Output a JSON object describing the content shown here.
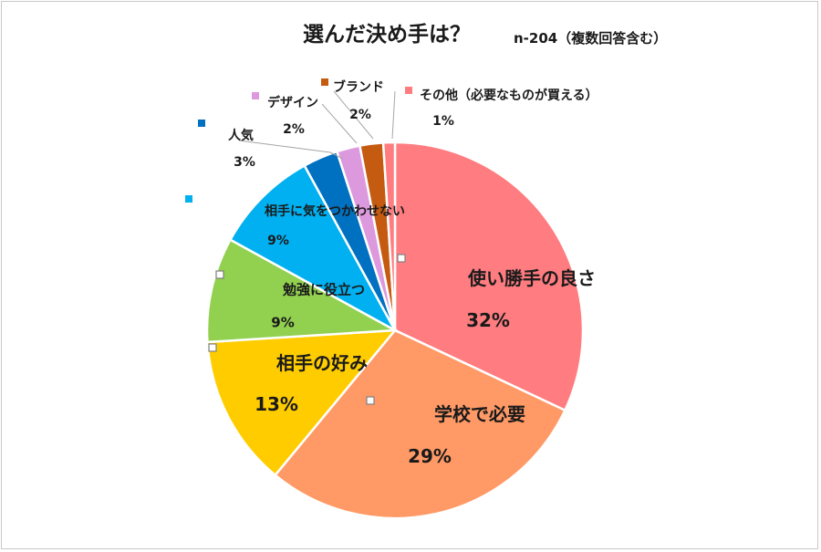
{
  "chart_data": {
    "type": "pie",
    "title": "選んだ決め手は？",
    "note": "n-204（複数回答含む）",
    "slices": [
      {
        "label": "使い勝手の良さ",
        "value": 32,
        "display": "32%",
        "color": "#ff7c80"
      },
      {
        "label": "学校で必要",
        "value": 29,
        "display": "29%",
        "color": "#ff9966"
      },
      {
        "label": "相手の好み",
        "value": 13,
        "display": "13%",
        "color": "#ffcc00"
      },
      {
        "label": "勉強に役立つ",
        "value": 9,
        "display": "9%",
        "color": "#92d050"
      },
      {
        "label": "相手に気をつかわせない",
        "value": 9,
        "display": "9%",
        "color": "#00b0f0"
      },
      {
        "label": "人気",
        "value": 3,
        "display": "3%",
        "color": "#0070c0"
      },
      {
        "label": "デザイン",
        "value": 2,
        "display": "2%",
        "color": "#dd99dd"
      },
      {
        "label": "ブランド",
        "value": 2,
        "display": "2%",
        "color": "#c55a11"
      },
      {
        "label": "その他（必要なものが買える）",
        "value": 1,
        "display": "1%",
        "color": "#ff7c80"
      }
    ]
  }
}
